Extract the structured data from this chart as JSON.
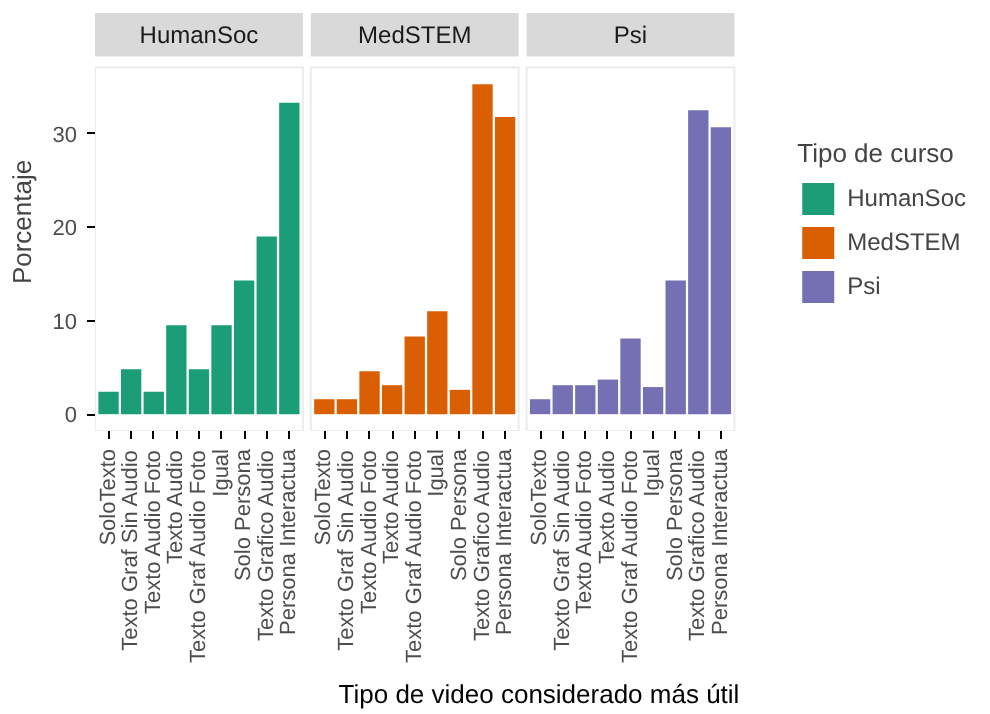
{
  "chart_data": [
    {
      "type": "bar",
      "title": "HumanSoc",
      "ylabel": "Porcentaje",
      "categories": [
        "SoloTexto",
        "Texto Graf Sin Audio",
        "Texto Audio Foto",
        "Texto Audio",
        "Texto Graf Audio Foto",
        "Igual",
        "Solo Persona",
        "Texto Grafico Audio",
        "Persona Interactua"
      ],
      "series": [
        {
          "name": "HumanSoc",
          "color": "#1b9e77",
          "values": [
            2.4,
            4.8,
            2.4,
            9.5,
            4.8,
            9.5,
            14.3,
            19.0,
            33.3
          ]
        }
      ],
      "ylim": [
        -1.8,
        37.1
      ],
      "yticks": [
        0,
        10,
        20,
        30
      ],
      "grid": false
    },
    {
      "type": "bar",
      "title": "MedSTEM",
      "xlabel": "Tipo de video considerado más útil",
      "categories": [
        "SoloTexto",
        "Texto Graf Sin Audio",
        "Texto Audio Foto",
        "Texto Audio",
        "Texto Graf Audio Foto",
        "Igual",
        "Solo Persona",
        "Texto Grafico Audio",
        "Persona Interactua"
      ],
      "series": [
        {
          "name": "MedSTEM",
          "color": "#d95f02",
          "values": [
            1.6,
            1.6,
            4.6,
            3.1,
            8.3,
            11.0,
            2.6,
            35.3,
            31.8
          ]
        }
      ],
      "ylim": [
        -1.8,
        37.1
      ],
      "yticks": [
        0,
        10,
        20,
        30
      ],
      "tick_labels": "x",
      "grid": false
    },
    {
      "type": "bar",
      "title": "Psi",
      "legend_title": "Tipo de curso",
      "legend": "right",
      "categories": [
        "SoloTexto",
        "Texto Graf Sin Audio",
        "Texto Audio Foto",
        "Texto Audio",
        "Texto Graf Audio Foto",
        "Igual",
        "Solo Persona",
        "Texto Grafico Audio",
        "Persona Interactua"
      ],
      "series": [
        {
          "name": "Psi",
          "color": "#7570b3",
          "values": [
            1.6,
            3.1,
            3.1,
            3.7,
            8.1,
            2.9,
            14.3,
            32.5,
            30.7
          ]
        }
      ],
      "ylim": [
        -1.8,
        37.1
      ],
      "yticks": [
        0,
        10,
        20,
        30
      ],
      "tick_labels": "x",
      "grid": false
    }
  ]
}
